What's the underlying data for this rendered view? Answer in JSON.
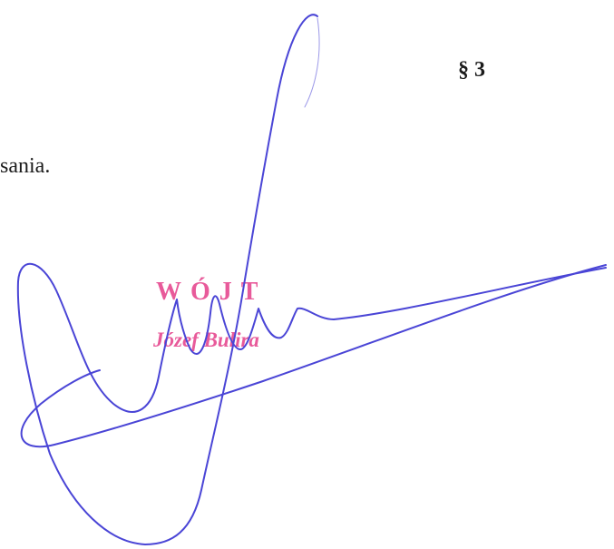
{
  "document": {
    "section_mark": "§ 3",
    "body_fragment": "sania."
  },
  "stamp": {
    "title": "WÓJT",
    "name": "Józef Bulira",
    "color": "#e85a9a"
  },
  "signature": {
    "color": "#4a45d6"
  }
}
